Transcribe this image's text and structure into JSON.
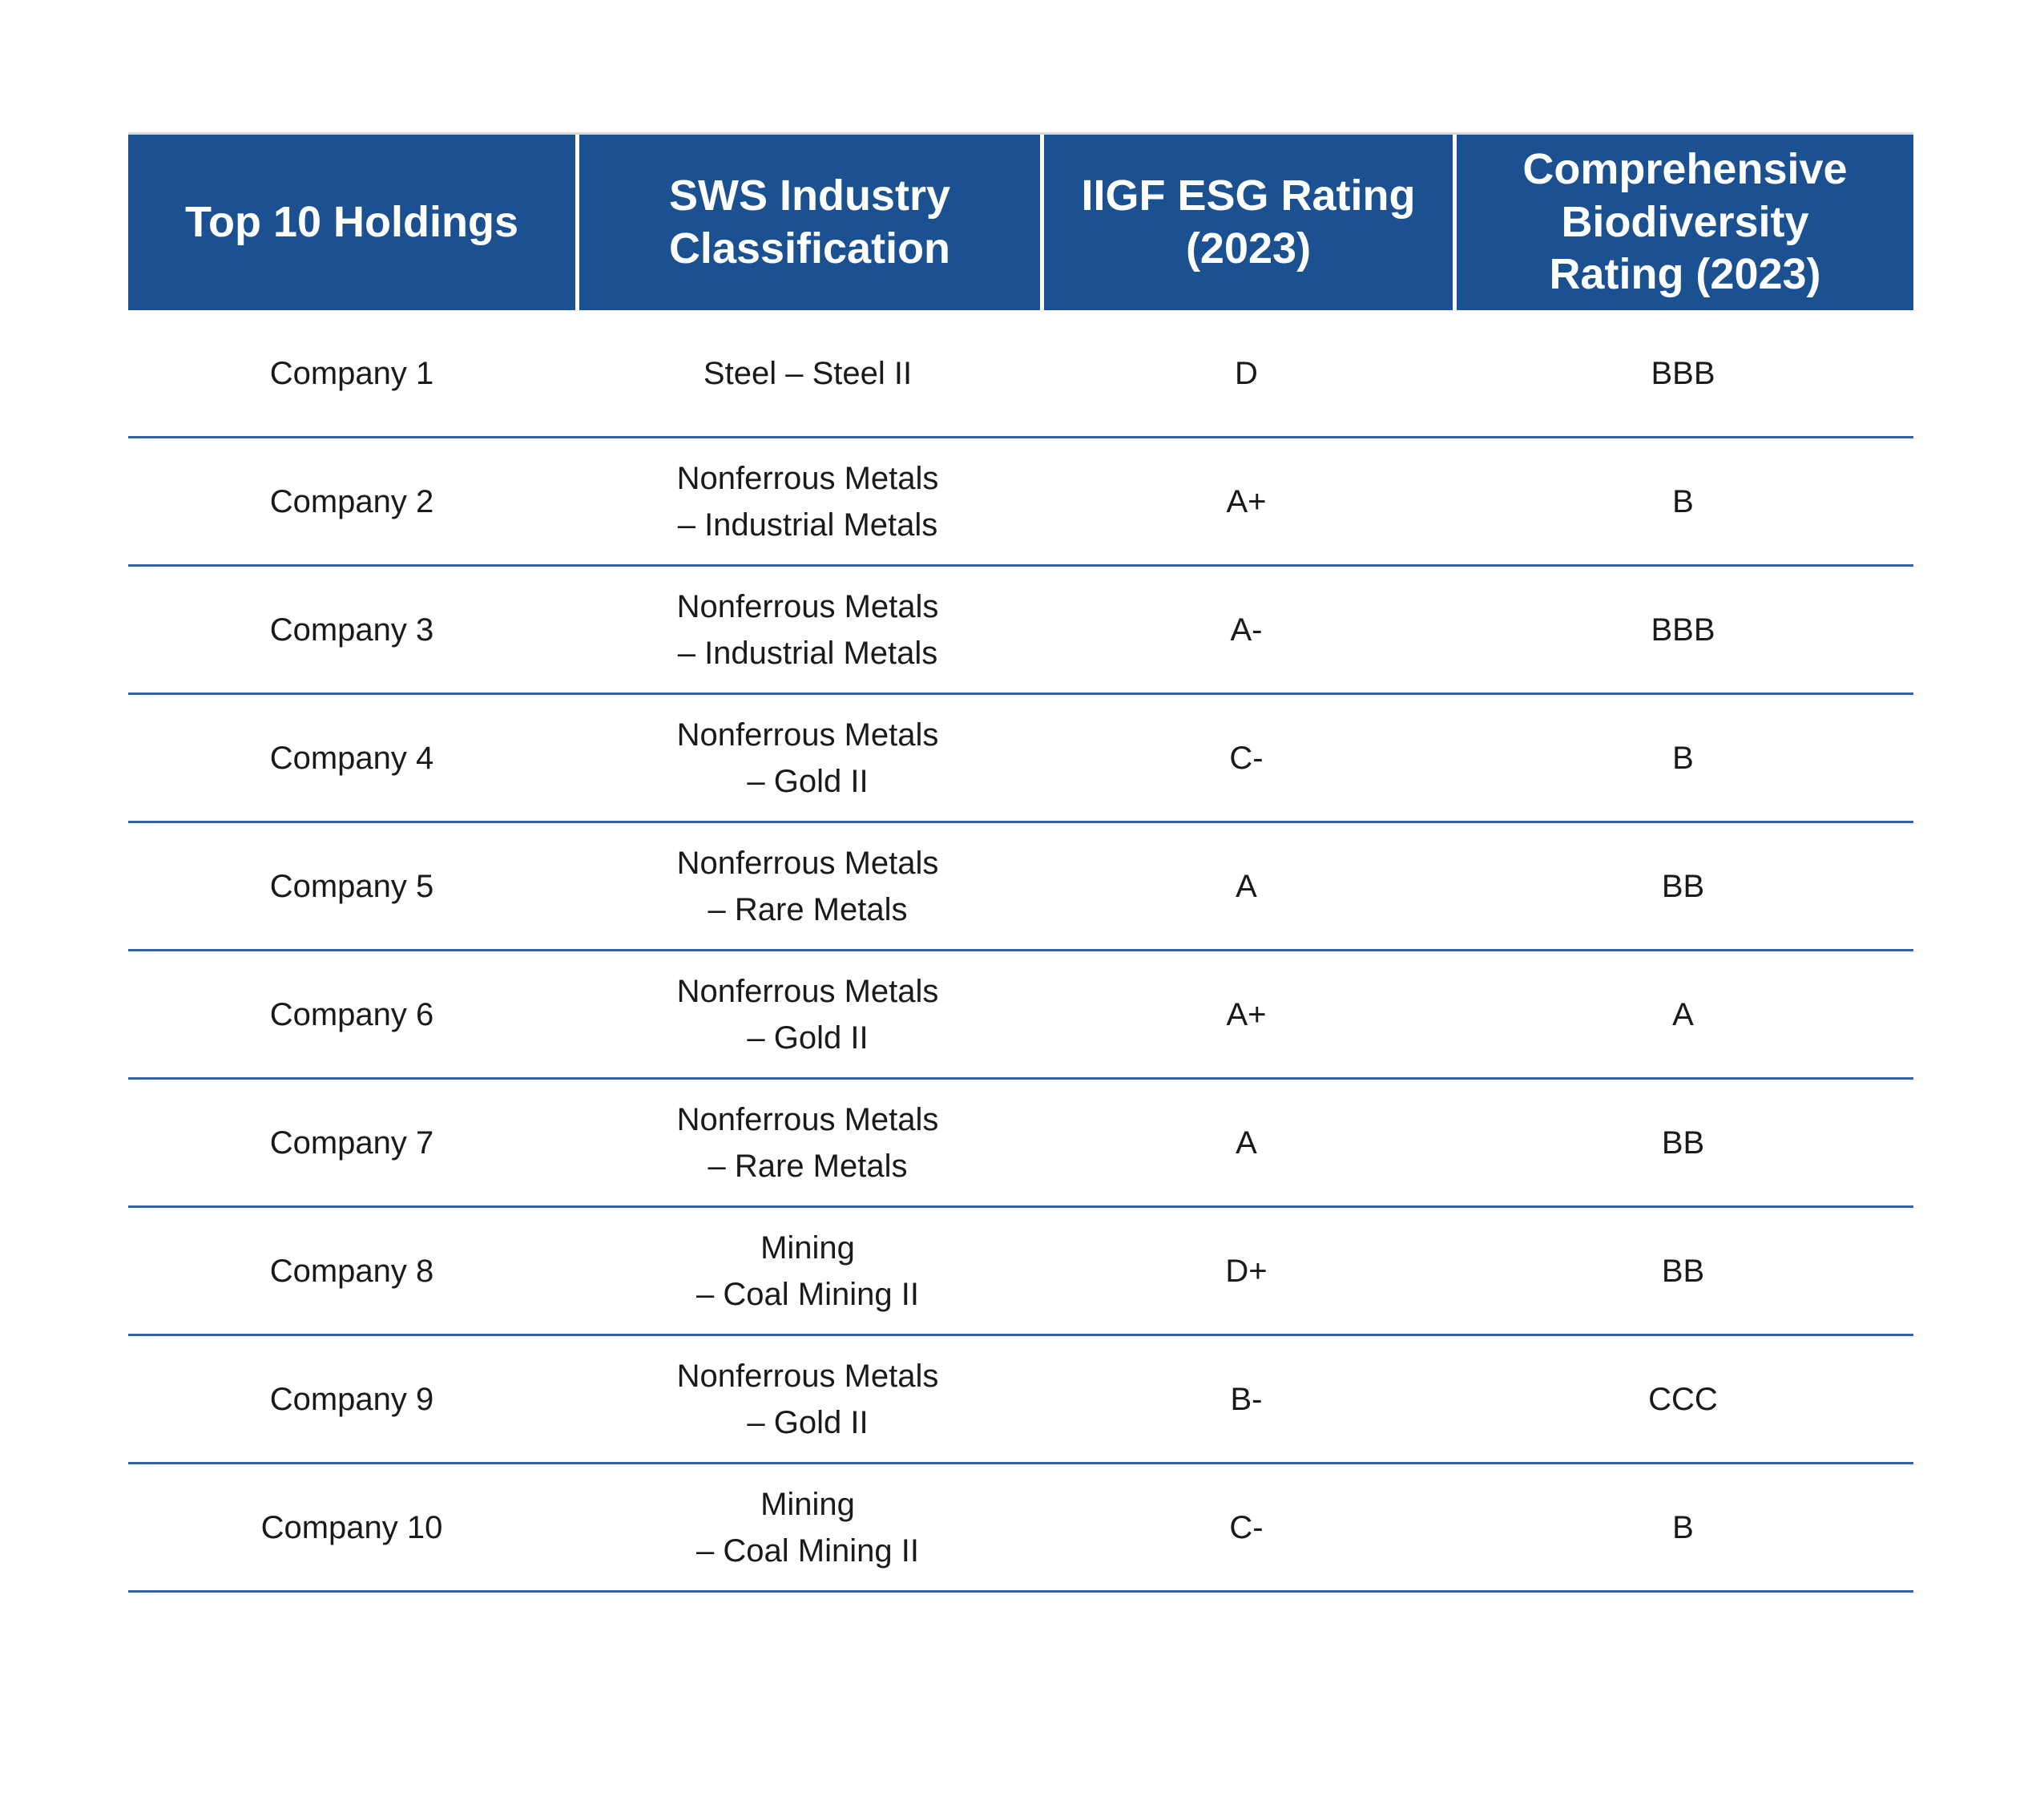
{
  "chart_data": {
    "type": "table",
    "columns": [
      "Top 10 Holdings",
      "SWS Industry\nClassification",
      "IIGF ESG Rating\n(2023)",
      "Comprehensive\nBiodiversity\nRating (2023)"
    ],
    "rows": [
      {
        "holding": "Company 1",
        "industry": "Steel – Steel II",
        "esg_rating": "D",
        "biodiversity_rating": "BBB"
      },
      {
        "holding": "Company 2",
        "industry": "Nonferrous Metals\n– Industrial Metals",
        "esg_rating": "A+",
        "biodiversity_rating": "B"
      },
      {
        "holding": "Company 3",
        "industry": "Nonferrous Metals\n– Industrial Metals",
        "esg_rating": "A-",
        "biodiversity_rating": "BBB"
      },
      {
        "holding": "Company 4",
        "industry": "Nonferrous Metals\n– Gold II",
        "esg_rating": "C-",
        "biodiversity_rating": "B"
      },
      {
        "holding": "Company 5",
        "industry": "Nonferrous Metals\n– Rare Metals",
        "esg_rating": "A",
        "biodiversity_rating": "BB"
      },
      {
        "holding": "Company 6",
        "industry": "Nonferrous Metals\n– Gold II",
        "esg_rating": "A+",
        "biodiversity_rating": "A"
      },
      {
        "holding": "Company 7",
        "industry": "Nonferrous Metals\n– Rare Metals",
        "esg_rating": "A",
        "biodiversity_rating": "BB"
      },
      {
        "holding": "Company 8",
        "industry": "Mining\n– Coal Mining II",
        "esg_rating": "D+",
        "biodiversity_rating": "BB"
      },
      {
        "holding": "Company 9",
        "industry": "Nonferrous Metals\n– Gold II",
        "esg_rating": "B-",
        "biodiversity_rating": "CCC"
      },
      {
        "holding": "Company 10",
        "industry": "Mining\n– Coal Mining II",
        "esg_rating": "C-",
        "biodiversity_rating": "B"
      }
    ]
  },
  "colors": {
    "header_background": "#1b5191",
    "header_text": "#ffffff",
    "header_divider": "#ffffff",
    "header_top_border": "#d9d9d9",
    "row_divider": "#31619f",
    "body_text": "#1a1a1a",
    "page_background": "#ffffff"
  }
}
